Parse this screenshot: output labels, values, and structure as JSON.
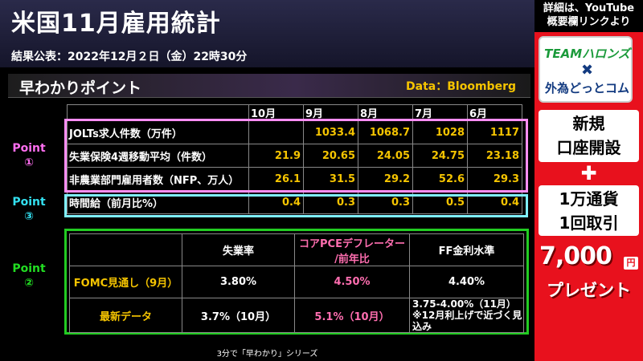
{
  "header": {
    "title": "米国11月雇用統計",
    "subtitle": "結果公表：2022年12月２日（金）22時30分"
  },
  "section": {
    "title": "早わかりポイント",
    "data_source": "Data：Bloomberg"
  },
  "points": {
    "p1": [
      "Point",
      "①"
    ],
    "p3": [
      "Point",
      "③"
    ],
    "p2": [
      "Point",
      "②"
    ]
  },
  "stats_table": {
    "columns": [
      "10月",
      "9月",
      "8月",
      "7月",
      "6月"
    ],
    "rows": [
      {
        "label": "JOLTs求人件数（万件）",
        "values": [
          "",
          "1033.4",
          "1068.7",
          "1028",
          "1117"
        ]
      },
      {
        "label": "失業保険4週移動平均（件数）",
        "values": [
          "21.9",
          "20.65",
          "24.05",
          "24.75",
          "23.18"
        ]
      },
      {
        "label": "非農業部門雇用者数（NFP、万人）",
        "values": [
          "26.1",
          "31.5",
          "29.2",
          "52.6",
          "29.3"
        ]
      },
      {
        "label": "時間給（前月比%）",
        "values": [
          "0.4",
          "0.3",
          "0.3",
          "0.5",
          "0.4"
        ]
      }
    ]
  },
  "fomc_table": {
    "headers": [
      "",
      "失業率",
      "コアPCEデフレーター\n/前年比",
      "FF金利水準"
    ],
    "header_line1": "コアPCEデフレーター",
    "header_line2": "/前年比",
    "rows": [
      {
        "label": "FOMC見通し（9月）",
        "values": [
          "3.80%",
          "4.50%",
          "4.40%"
        ]
      },
      {
        "label": "最新データ",
        "values": [
          "3.7%（10月）",
          "5.1%（10月）"
        ],
        "note_lines": [
          "3.75-4.00%（11月）",
          "※12月利上げで近づく見",
          "込み"
        ]
      }
    ]
  },
  "footer": "3分で「早わかり」シリーズ",
  "sidebar": {
    "top_line1": "詳細は、YouTube",
    "top_line2": "概要欄リンクより",
    "logo_line1": "TEAMハロンズ",
    "logo_line2": "✖",
    "logo_line3": "外為どっとコム",
    "box1_line1": "新規",
    "box1_line2": "口座開設",
    "plus": "✚",
    "box2_line1": "1万通貨",
    "box2_line2": "1回取引",
    "amount": "7,000",
    "yen": "円",
    "present": "プレゼント"
  },
  "colors": {
    "accent_yellow": "#f5c400",
    "point1_pink": "#ff8ef5",
    "point3_cyan": "#7ff0ff",
    "point2_green": "#22cc22",
    "pce_pink": "#ff6eb0",
    "sidebar_red": "#e8111d"
  }
}
